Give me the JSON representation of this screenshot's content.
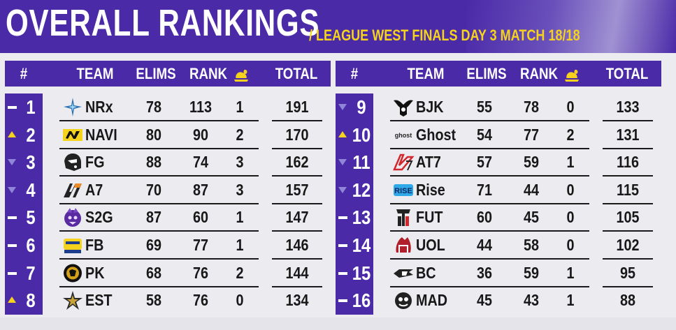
{
  "header": {
    "title": "OVERALL RANKINGS",
    "subtitle": "/ LEAGUE WEST FINALS DAY 3 MATCH 18/18"
  },
  "columns": {
    "num": "#",
    "team": "TEAM",
    "elims": "ELIMS",
    "rank": "RANK",
    "chicken": "chicken-dinner-icon",
    "total": "TOTAL"
  },
  "colors": {
    "purple": "#4b2aa8",
    "yellow": "#f5d31c",
    "down": "#8f86d8"
  },
  "left": [
    {
      "num": "1",
      "change": "same",
      "logo": "nrx-star-logo",
      "team": "NRx",
      "elims": "78",
      "rank": "113",
      "chicken": "1",
      "total": "191"
    },
    {
      "num": "2",
      "change": "up",
      "logo": "navi-logo",
      "team": "NAVI",
      "elims": "80",
      "rank": "90",
      "chicken": "2",
      "total": "170"
    },
    {
      "num": "3",
      "change": "down",
      "logo": "fg-helmet-logo",
      "team": "FG",
      "elims": "88",
      "rank": "74",
      "chicken": "3",
      "total": "162"
    },
    {
      "num": "4",
      "change": "down",
      "logo": "a7-logo",
      "team": "A7",
      "elims": "70",
      "rank": "87",
      "chicken": "3",
      "total": "157"
    },
    {
      "num": "5",
      "change": "same",
      "logo": "s2g-logo",
      "team": "S2G",
      "elims": "87",
      "rank": "60",
      "chicken": "1",
      "total": "147"
    },
    {
      "num": "6",
      "change": "same",
      "logo": "fb-logo",
      "team": "FB",
      "elims": "69",
      "rank": "77",
      "chicken": "1",
      "total": "146"
    },
    {
      "num": "7",
      "change": "same",
      "logo": "pk-logo",
      "team": "PK",
      "elims": "68",
      "rank": "76",
      "chicken": "2",
      "total": "144"
    },
    {
      "num": "8",
      "change": "up",
      "logo": "est-star-logo",
      "team": "EST",
      "elims": "58",
      "rank": "76",
      "chicken": "0",
      "total": "134"
    }
  ],
  "right": [
    {
      "num": "9",
      "change": "down",
      "logo": "bjk-eagle-logo",
      "team": "BJK",
      "elims": "55",
      "rank": "78",
      "chicken": "0",
      "total": "133"
    },
    {
      "num": "10",
      "change": "up",
      "logo": "ghost-logo",
      "team": "Ghost",
      "elims": "54",
      "rank": "77",
      "chicken": "2",
      "total": "131"
    },
    {
      "num": "11",
      "change": "down",
      "logo": "at7-logo",
      "team": "AT7",
      "elims": "57",
      "rank": "59",
      "chicken": "1",
      "total": "116"
    },
    {
      "num": "12",
      "change": "down",
      "logo": "rise-logo",
      "team": "Rise",
      "elims": "71",
      "rank": "44",
      "chicken": "0",
      "total": "115"
    },
    {
      "num": "13",
      "change": "same",
      "logo": "fut-logo",
      "team": "FUT",
      "elims": "60",
      "rank": "45",
      "chicken": "0",
      "total": "105"
    },
    {
      "num": "14",
      "change": "same",
      "logo": "uol-logo",
      "team": "UOL",
      "elims": "44",
      "rank": "58",
      "chicken": "0",
      "total": "102"
    },
    {
      "num": "15",
      "change": "same",
      "logo": "bc-logo",
      "team": "BC",
      "elims": "36",
      "rank": "59",
      "chicken": "1",
      "total": "95"
    },
    {
      "num": "16",
      "change": "same",
      "logo": "mad-logo",
      "team": "MAD",
      "elims": "45",
      "rank": "43",
      "chicken": "1",
      "total": "88"
    }
  ]
}
